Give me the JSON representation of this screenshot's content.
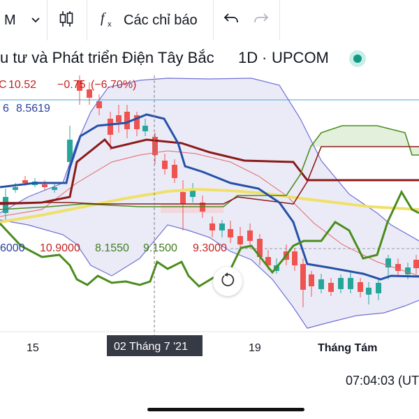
{
  "toolbar": {
    "interval": "M",
    "indicators_label": "Các chỉ báo"
  },
  "legend": {
    "title": "u tư và Phát triển Điện Tây Bắc",
    "resolution": "1D",
    "exchange": "UPCOM",
    "close_prefix": "C",
    "close": "10.52",
    "change": "−0.75",
    "change_pct": "(−6.70%)",
    "ind1_value_a": "6",
    "ind1_value_b": "8.5619",
    "ind2_values": [
      "6000",
      "10.9000",
      "8.1550",
      "9.1500",
      "9.3000"
    ]
  },
  "time_axis": {
    "ticks": [
      "15",
      "19",
      "Tháng Tám"
    ],
    "crosshair_label": "02 Tháng 7 '21"
  },
  "clock": "07:04:03 (UT",
  "colors": {
    "bull": "#26a69a",
    "bear": "#ef5350",
    "bollinger": "#6f6fd6",
    "bollinger_fill": "#e8e8f6",
    "tenkan": "#2451a6",
    "kijun": "#8b1a1a",
    "lagging": "#4a8c1c",
    "ma": "#f0e06a",
    "indicator_text_blue": "#2a3f9c",
    "indicator_text_red": "#c22222",
    "indicator_text_green": "#3e7d20",
    "price_line": "#4aa3df"
  },
  "icons": [
    "chevron-down-icon",
    "candles-icon",
    "fx-icon",
    "undo-icon",
    "redo-icon",
    "status-dot-icon"
  ]
}
